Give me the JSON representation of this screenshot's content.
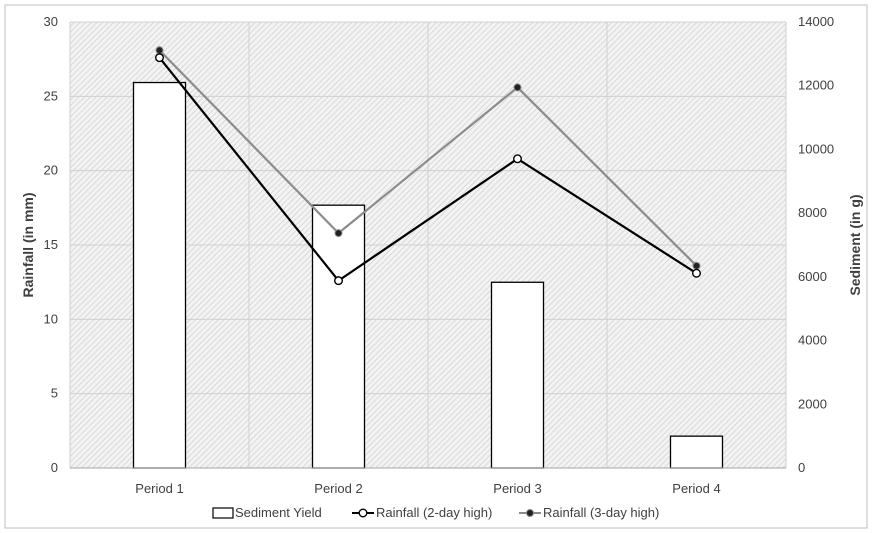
{
  "chart_data": {
    "type": "bar+line",
    "categories": [
      "Period 1",
      "Period 2",
      "Period 3",
      "Period 4"
    ],
    "ylabel": "Rainfall (in mm)",
    "y2label": "Sediment (in g)",
    "ylim": [
      0,
      30
    ],
    "y2lim": [
      0,
      14000
    ],
    "yticks": [
      0,
      5,
      10,
      15,
      20,
      25,
      30
    ],
    "y2ticks": [
      0,
      2000,
      4000,
      6000,
      8000,
      10000,
      12000,
      14000
    ],
    "grid": true,
    "legend_position": "bottom",
    "series": [
      {
        "name": "Sediment Yield",
        "kind": "bar",
        "axis": "right",
        "values": [
          12100,
          8250,
          5830,
          1000
        ],
        "color": "#000000"
      },
      {
        "name": "Rainfall (2-day high)",
        "kind": "line",
        "axis": "left",
        "values": [
          27.6,
          12.6,
          20.8,
          13.1
        ],
        "color": "#000000"
      },
      {
        "name": "Rainfall (3-day high)",
        "kind": "line",
        "axis": "left",
        "values": [
          28.1,
          15.8,
          25.6,
          13.6
        ],
        "color": "#8c8c8c"
      }
    ]
  }
}
